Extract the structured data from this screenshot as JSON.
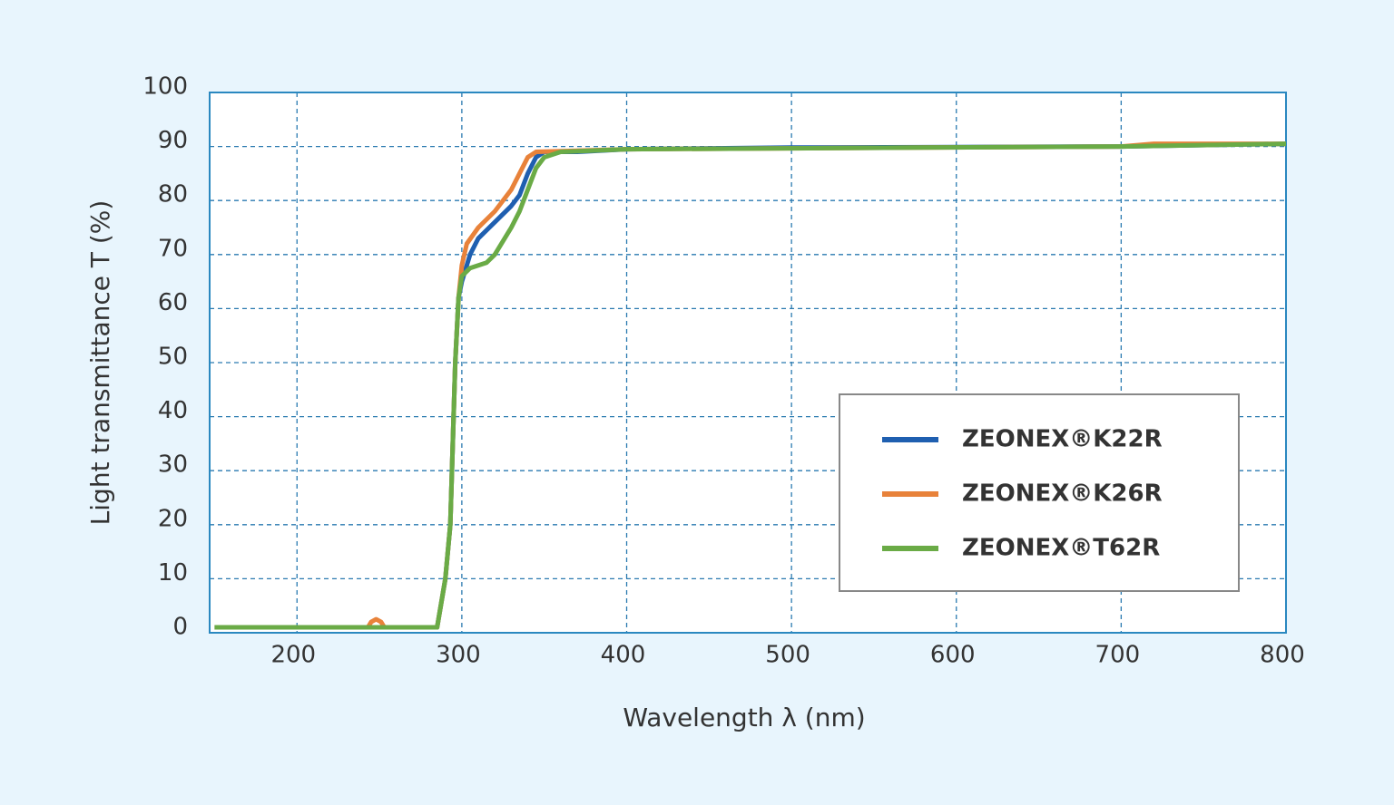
{
  "chart_data": {
    "type": "line",
    "x_label": "Wavelength λ (nm)",
    "y_label": "Light transmittance T (%)",
    "xlim": [
      147,
      800
    ],
    "ylim": [
      0,
      100
    ],
    "xticks": [
      200,
      300,
      400,
      500,
      600,
      700,
      800
    ],
    "yticks": [
      0,
      10,
      20,
      30,
      40,
      50,
      60,
      70,
      80,
      90,
      100
    ],
    "grid": true,
    "legend": "lower right",
    "series": [
      {
        "name": "ZEONEX®K22R",
        "color": "#1f5fb0",
        "x": [
          150,
          285,
          290,
          293,
          296,
          298,
          300,
          305,
          310,
          320,
          330,
          335,
          340,
          345,
          350,
          370,
          400,
          500,
          600,
          700,
          800
        ],
        "values": [
          1,
          1,
          10,
          20,
          50,
          62,
          65,
          70,
          73,
          76,
          79,
          81,
          85,
          88,
          89,
          89,
          89.5,
          89.8,
          89.9,
          90,
          90.5
        ]
      },
      {
        "name": "ZEONEX®K26R",
        "color": "#e8823a",
        "x": [
          150,
          243,
          245,
          248,
          251,
          253,
          285,
          290,
          293,
          296,
          298,
          300,
          303,
          310,
          320,
          330,
          335,
          340,
          345,
          400,
          700,
          720,
          800
        ],
        "values": [
          1,
          1,
          2,
          2.5,
          2,
          1,
          1,
          10,
          20,
          50,
          62,
          68,
          72,
          75,
          78,
          82,
          85,
          88,
          89,
          89.5,
          90,
          90.5,
          90.5
        ]
      },
      {
        "name": "ZEONEX®T62R",
        "color": "#6aab46",
        "x": [
          150,
          285,
          290,
          293,
          296,
          298,
          300,
          305,
          315,
          320,
          330,
          335,
          340,
          345,
          350,
          360,
          400,
          700,
          800
        ],
        "values": [
          1,
          1,
          10,
          20,
          50,
          62,
          66,
          67.5,
          68.5,
          70,
          75,
          78,
          82,
          86,
          88,
          89,
          89.5,
          90,
          90.5
        ]
      }
    ]
  }
}
